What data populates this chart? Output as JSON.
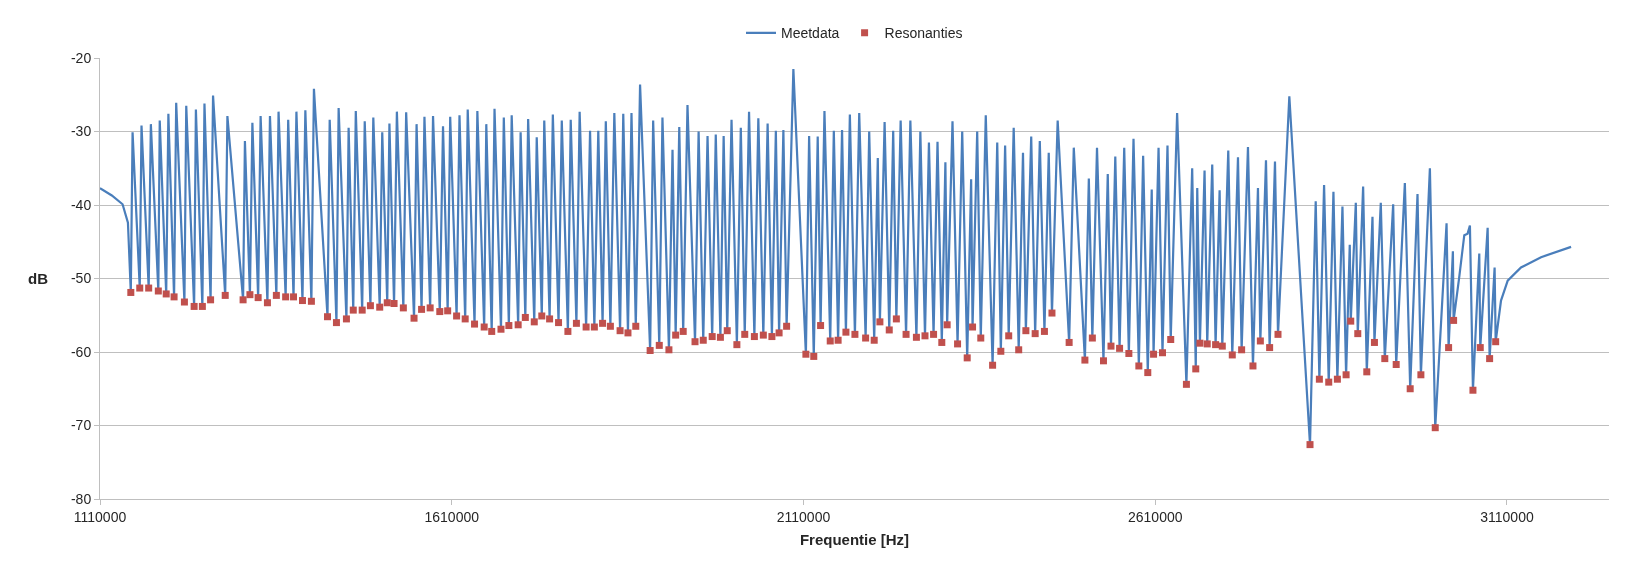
{
  "chart_data": {
    "type": "line",
    "xlabel": "Frequentie [Hz]",
    "ylabel": "dB",
    "xlim": [
      1110000,
      3255000
    ],
    "xticks": [
      1110000,
      1610000,
      2110000,
      2610000,
      3110000
    ],
    "ylim": [
      -80,
      -20
    ],
    "yticks": [
      -80,
      -70,
      -60,
      -50,
      -40,
      -30,
      -20
    ],
    "grid": "y",
    "legend": "top",
    "series": [
      {
        "name": "Meetdata",
        "type": "line",
        "color": "#4a7ebb",
        "line_style": "solid",
        "marker": "none",
        "x": [
          1110000,
          1126800,
          1142100,
          1149700,
          1153800,
          1156300,
          1166500,
          1169000,
          1179200,
          1182300,
          1192900,
          1194900,
          1204100,
          1207200,
          1215300,
          1218300,
          1230000,
          1232600,
          1243800,
          1246300,
          1255500,
          1258500,
          1267200,
          1270700,
          1288000,
          1291100,
          1313400,
          1316000,
          1323100,
          1326600,
          1334800,
          1338300,
          1348000,
          1351600,
          1360700,
          1363800,
          1373900,
          1377500,
          1385100,
          1389200,
          1397800,
          1401900,
          1410500,
          1414100,
          1433400,
          1436500,
          1446100,
          1449200,
          1460300,
          1463400,
          1470000,
          1473600,
          1482700,
          1486300,
          1494400,
          1498500,
          1507600,
          1511200,
          1518300,
          1521400,
          1528000,
          1532000,
          1541200,
          1545200,
          1556400,
          1560000,
          1567100,
          1571200,
          1579300,
          1583400,
          1593000,
          1597600,
          1604200,
          1607800,
          1616900,
          1621000,
          1629100,
          1632700,
          1642400,
          1646400,
          1656100,
          1659100,
          1666800,
          1670800,
          1680000,
          1684000,
          1691200,
          1695200,
          1704400,
          1707900,
          1714600,
          1718600,
          1727300,
          1730800,
          1738000,
          1741500,
          1749100,
          1753700,
          1761800,
          1766400,
          1775100,
          1779100,
          1787200,
          1791800,
          1801000,
          1806600,
          1812700,
          1818300,
          1824400,
          1829000,
          1835500,
          1841100,
          1849300,
          1853800,
          1860500,
          1865500,
          1871600,
          1877700,
          1892000,
          1896300,
          1905000,
          1909500,
          1918700,
          1923800,
          1928300,
          1933400,
          1939000,
          1945100,
          1955800,
          1960900,
          1967500,
          1973600,
          1980200,
          1985300,
          1991900,
          1996500,
          2001600,
          2007700,
          2015300,
          2020900,
          2026500,
          2032600,
          2040200,
          2045800,
          2052900,
          2059000,
          2065100,
          2070700,
          2075300,
          2081400,
          2086000,
          2095600,
          2113400,
          2118000,
          2124600,
          2130200,
          2134300,
          2139800,
          2148000,
          2153100,
          2159200,
          2164800,
          2170300,
          2175900,
          2183100,
          2189200,
          2198300,
          2203400,
          2210500,
          2215600,
          2218600,
          2225300,
          2231900,
          2237500,
          2242000,
          2248100,
          2255800,
          2261900,
          2270500,
          2276100,
          2282700,
          2288300,
          2294900,
          2300500,
          2306600,
          2311700,
          2314200,
          2321800,
          2329000,
          2335600,
          2342700,
          2348300,
          2350300,
          2356900,
          2362000,
          2369100,
          2378800,
          2385400,
          2390500,
          2396600,
          2401700,
          2408800,
          2415900,
          2422000,
          2426100,
          2433700,
          2439300,
          2445900,
          2452500,
          2458600,
          2463200,
          2471300,
          2487600,
          2494200,
          2510000,
          2515600,
          2520600,
          2527200,
          2536400,
          2542500,
          2547100,
          2553200,
          2559300,
          2565900,
          2572500,
          2579100,
          2586700,
          2592800,
          2599400,
          2605000,
          2607600,
          2614700,
          2620300,
          2627400,
          2632000,
          2641100,
          2654300,
          2662500,
          2667600,
          2669700,
          2673500,
          2680100,
          2683900,
          2691000,
          2695800,
          2701500,
          2705300,
          2713800,
          2719500,
          2727600,
          2732800,
          2741800,
          2748900,
          2756000,
          2759400,
          2767400,
          2772600,
          2780200,
          2784500,
          2800600,
          2830000,
          2838100,
          2843300,
          2850000,
          2856600,
          2863300,
          2868900,
          2876100,
          2881300,
          2886500,
          2887900,
          2895100,
          2897900,
          2905500,
          2910700,
          2918800,
          2921600,
          2930600,
          2936300,
          2948200,
          2952500,
          2964800,
          2972400,
          2982800,
          2987600,
          3000400,
          3008000,
          3024100,
          3027000,
          3033100,
          3034100,
          3042100,
          3049300,
          3054000,
          3057300,
          3061600,
          3070600,
          3072000,
          3082500,
          3085300,
          3092400,
          3093900,
          3101500,
          3111000,
          3129900,
          3158400,
          3201100
        ],
        "values": [
          -37.7,
          -38.7,
          -39.9,
          -42.4,
          -51.9,
          -30.1,
          -51.3,
          -29.2,
          -51.3,
          -29,
          -51.7,
          -28.5,
          -52.1,
          -27.6,
          -52.5,
          -26.1,
          -53.2,
          -26.5,
          -53.8,
          -27,
          -53.8,
          -26.2,
          -52.9,
          -25.1,
          -52.3,
          -27.9,
          -52.9,
          -31.3,
          -52.2,
          -28.8,
          -52.6,
          -27.9,
          -53.3,
          -27.9,
          -52.3,
          -27.3,
          -52.5,
          -28.4,
          -52.5,
          -27.3,
          -53,
          -27.1,
          -53.1,
          -24.2,
          -55.2,
          -28.4,
          -56,
          -26.8,
          -55.5,
          -29.5,
          -54.3,
          -27.2,
          -54.3,
          -28.6,
          -53.7,
          -28.1,
          -53.9,
          -30.1,
          -53.3,
          -28.9,
          -53.4,
          -27.3,
          -54,
          -27.4,
          -55.4,
          -29,
          -54.2,
          -28,
          -54,
          -27.9,
          -54.5,
          -29.3,
          -54.4,
          -28,
          -55.1,
          -27.8,
          -55.5,
          -27,
          -56.2,
          -27.2,
          -56.6,
          -29,
          -57.2,
          -26.9,
          -56.9,
          -28.1,
          -56.4,
          -27.8,
          -56.3,
          -30.1,
          -55.3,
          -28.3,
          -55.9,
          -30.8,
          -55.1,
          -28.5,
          -55.5,
          -27.7,
          -56,
          -28.5,
          -57.2,
          -28.4,
          -56.1,
          -27.3,
          -56.6,
          -29.9,
          -56.6,
          -29.9,
          -56.1,
          -28.6,
          -56.5,
          -27.5,
          -57.1,
          -27.6,
          -57.4,
          -27.5,
          -56.5,
          -23.6,
          -59.8,
          -28.5,
          -59.1,
          -28.1,
          -59.7,
          -32.5,
          -57.7,
          -29.4,
          -57.2,
          -26.4,
          -58.6,
          -30,
          -58.4,
          -30.6,
          -57.9,
          -30.4,
          -58,
          -30.6,
          -57.1,
          -28.4,
          -59,
          -29.5,
          -57.6,
          -27.3,
          -57.9,
          -28.2,
          -57.7,
          -28.9,
          -57.9,
          -29.9,
          -57.4,
          -29.8,
          -56.5,
          -21.5,
          -60.3,
          -30.6,
          -60.6,
          -30.7,
          -56.4,
          -27.2,
          -58.5,
          -29.9,
          -58.4,
          -29.8,
          -57.3,
          -27.7,
          -57.6,
          -27.5,
          -58.1,
          -30,
          -58.4,
          -33.6,
          -55.9,
          -28.7,
          -57,
          -29.9,
          -55.5,
          -28.5,
          -57.6,
          -28.5,
          -58,
          -30,
          -57.8,
          -31.5,
          -57.6,
          -31.4,
          -58.7,
          -34.2,
          -56.3,
          -28.6,
          -58.9,
          -30,
          -60.8,
          -36.5,
          -56.6,
          -30,
          -58.1,
          -27.8,
          -61.8,
          -31.5,
          -59.9,
          -31.9,
          -57.8,
          -29.5,
          -59.7,
          -32.9,
          -57.1,
          -30.7,
          -57.5,
          -31.3,
          -57.2,
          -32.9,
          -54.7,
          -28.5,
          -58.7,
          -32.2,
          -61.1,
          -36.4,
          -58.1,
          -32.2,
          -61.2,
          -35.8,
          -59.2,
          -33.4,
          -59.5,
          -32.2,
          -60.2,
          -31,
          -61.9,
          -33.3,
          -62.8,
          -37.9,
          -60.3,
          -32.2,
          -60.1,
          -31.9,
          -58.3,
          -27.5,
          -64.4,
          -35,
          -62.3,
          -37.7,
          -58.8,
          -35.3,
          -58.9,
          -34.5,
          -59,
          -38,
          -59.2,
          -32.6,
          -60.4,
          -33.5,
          -59.7,
          -32.1,
          -61.9,
          -37.7,
          -58.5,
          -33.9,
          -59.4,
          -34.1,
          -57.6,
          -25.2,
          -72.6,
          -39.5,
          -63.7,
          -37.3,
          -64.1,
          -38.2,
          -63.7,
          -40.2,
          -63.1,
          -45.4,
          -55.8,
          -39.7,
          -57.5,
          -37.5,
          -62.7,
          -41.6,
          -58.7,
          -39.7,
          -60.9,
          -39.9,
          -61.7,
          -37,
          -65,
          -38.5,
          -63.1,
          -35,
          -70.3,
          -42.5,
          -59.4,
          -46.3,
          -55.7,
          -49.8,
          -44.1,
          -43.9,
          -42.8,
          -65.2,
          -46.6,
          -59.4,
          -43.1,
          -60.9,
          -48.5,
          -58.6,
          -53,
          -50.3,
          -48.5,
          -47.1,
          -45.7
        ]
      },
      {
        "name": "Resonanties",
        "type": "scatter",
        "color": "#c0504d",
        "marker": "square",
        "x": [
          1153800,
          1166500,
          1179200,
          1192900,
          1204100,
          1215300,
          1230000,
          1243800,
          1255500,
          1267200,
          1288000,
          1313400,
          1323100,
          1334800,
          1348000,
          1360700,
          1373900,
          1385100,
          1397800,
          1410500,
          1433400,
          1446100,
          1460300,
          1470000,
          1482700,
          1494400,
          1507600,
          1518300,
          1528000,
          1541200,
          1556400,
          1567100,
          1579300,
          1593000,
          1604200,
          1616900,
          1629100,
          1642400,
          1656100,
          1666800,
          1680000,
          1691200,
          1704400,
          1714600,
          1727300,
          1738000,
          1749100,
          1761800,
          1775100,
          1787200,
          1801000,
          1812700,
          1824400,
          1835500,
          1849300,
          1860500,
          1871600,
          1892000,
          1905000,
          1918700,
          1928300,
          1939000,
          1955800,
          1967500,
          1980200,
          1991900,
          2001600,
          2015300,
          2026500,
          2040200,
          2052900,
          2065100,
          2075300,
          2086000,
          2113400,
          2124600,
          2134300,
          2148000,
          2159200,
          2170300,
          2183100,
          2198300,
          2210500,
          2218600,
          2231900,
          2242000,
          2255800,
          2270500,
          2282700,
          2294900,
          2306600,
          2314200,
          2329000,
          2342700,
          2350300,
          2362000,
          2378800,
          2390500,
          2401700,
          2415900,
          2426100,
          2439300,
          2452500,
          2463200,
          2487600,
          2510000,
          2520600,
          2536400,
          2547100,
          2559300,
          2572500,
          2586700,
          2599400,
          2607600,
          2620300,
          2632000,
          2654300,
          2667600,
          2673500,
          2683900,
          2695800,
          2705300,
          2719500,
          2732800,
          2748900,
          2759400,
          2772600,
          2784500,
          2830000,
          2843300,
          2856600,
          2868900,
          2881300,
          2887900,
          2897900,
          2910700,
          2921600,
          2936300,
          2952500,
          2972400,
          2987600,
          3008000,
          3027000,
          3034100,
          3061600,
          3072000,
          3085300,
          3093900
        ],
        "values": [
          -51.9,
          -51.3,
          -51.3,
          -51.7,
          -52.1,
          -52.5,
          -53.2,
          -53.8,
          -53.8,
          -52.9,
          -52.3,
          -52.9,
          -52.2,
          -52.6,
          -53.3,
          -52.3,
          -52.5,
          -52.5,
          -53,
          -53.1,
          -55.2,
          -56,
          -55.5,
          -54.3,
          -54.3,
          -53.7,
          -53.9,
          -53.3,
          -53.4,
          -54,
          -55.4,
          -54.2,
          -54,
          -54.5,
          -54.4,
          -55.1,
          -55.5,
          -56.2,
          -56.6,
          -57.2,
          -56.9,
          -56.4,
          -56.3,
          -55.3,
          -55.9,
          -55.1,
          -55.5,
          -56,
          -57.2,
          -56.1,
          -56.6,
          -56.6,
          -56.1,
          -56.5,
          -57.1,
          -57.4,
          -56.5,
          -59.8,
          -59.1,
          -59.7,
          -57.7,
          -57.2,
          -58.6,
          -58.4,
          -57.9,
          -58,
          -57.1,
          -59,
          -57.6,
          -57.9,
          -57.7,
          -57.9,
          -57.4,
          -56.5,
          -60.3,
          -60.6,
          -56.4,
          -58.5,
          -58.4,
          -57.3,
          -57.6,
          -58.1,
          -58.4,
          -55.9,
          -57,
          -55.5,
          -57.6,
          -58,
          -57.8,
          -57.6,
          -58.7,
          -56.3,
          -58.9,
          -60.8,
          -56.6,
          -58.1,
          -61.8,
          -59.9,
          -57.8,
          -59.7,
          -57.1,
          -57.5,
          -57.2,
          -54.7,
          -58.7,
          -61.1,
          -58.1,
          -61.2,
          -59.2,
          -59.5,
          -60.2,
          -61.9,
          -62.8,
          -60.3,
          -60.1,
          -58.3,
          -64.4,
          -62.3,
          -58.8,
          -58.9,
          -59,
          -59.2,
          -60.4,
          -59.7,
          -61.9,
          -58.5,
          -59.4,
          -57.6,
          -72.6,
          -63.7,
          -64.1,
          -63.7,
          -63.1,
          -55.8,
          -57.5,
          -62.7,
          -58.7,
          -60.9,
          -61.7,
          -65,
          -63.1,
          -70.3,
          -59.4,
          -55.7,
          -65.2,
          -59.4,
          -60.9,
          -58.6
        ]
      }
    ]
  }
}
